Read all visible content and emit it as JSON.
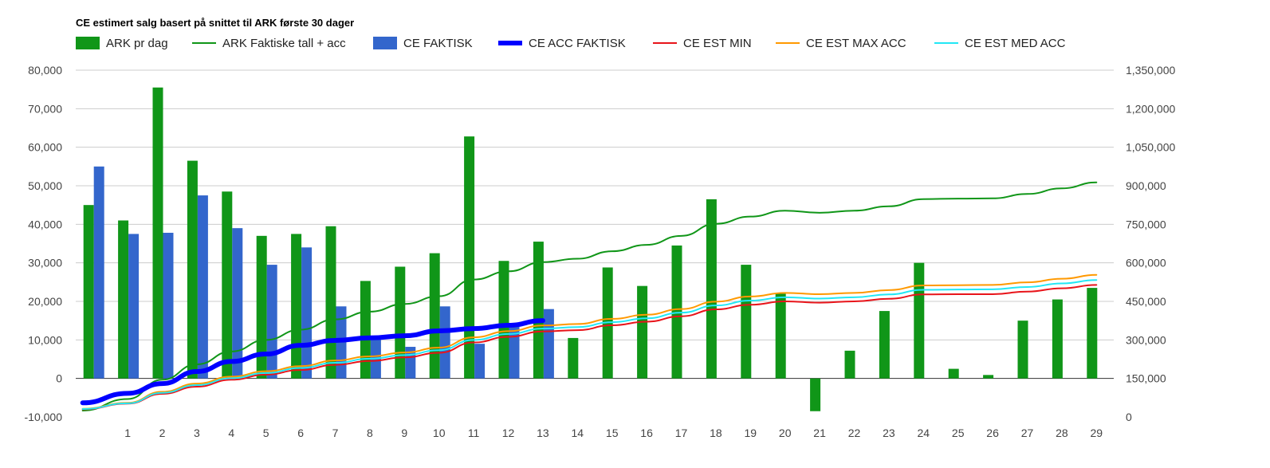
{
  "chart_data": {
    "type": "bar",
    "title": "CE estimert salg basert på snittet til ARK første 30 dager",
    "categories": [
      "",
      "1",
      "2",
      "3",
      "4",
      "5",
      "6",
      "7",
      "8",
      "9",
      "10",
      "11",
      "12",
      "13",
      "14",
      "15",
      "16",
      "17",
      "18",
      "19",
      "20",
      "21",
      "22",
      "23",
      "24",
      "25",
      "26",
      "27",
      "28",
      "29"
    ],
    "left_axis": {
      "min": -10000,
      "max": 80000,
      "ticks": [
        "80,000",
        "70,000",
        "60,000",
        "50,000",
        "40,000",
        "30,000",
        "20,000",
        "10,000",
        "0",
        "-10,000"
      ]
    },
    "right_axis": {
      "min": 0,
      "max": 1350000,
      "ticks": [
        "1,350,000",
        "1,200,000",
        "1,050,000",
        "900,000",
        "750,000",
        "600,000",
        "450,000",
        "300,000",
        "150,000",
        "0"
      ]
    },
    "grid": true,
    "legend_position": "top-left",
    "series": [
      {
        "name": "ARK pr dag",
        "kind": "bar",
        "axis": "left",
        "color": "#109618",
        "values": [
          45000,
          41000,
          75500,
          56500,
          48500,
          37000,
          37500,
          39500,
          25300,
          29000,
          32500,
          62800,
          30500,
          35500,
          10500,
          28800,
          24000,
          34500,
          46500,
          29500,
          22000,
          -8500,
          7200,
          17500,
          30000,
          2500,
          900,
          15000,
          20500,
          23500
        ]
      },
      {
        "name": "CE FAKTISK",
        "kind": "bar",
        "axis": "left",
        "color": "#3366cc",
        "values": [
          55000,
          37500,
          37800,
          47500,
          39000,
          29500,
          34000,
          18700,
          10500,
          8200,
          18700,
          9000,
          13500,
          18000,
          null,
          null,
          null,
          null,
          null,
          null,
          null,
          null,
          null,
          null,
          null,
          null,
          null,
          null,
          null,
          null
        ]
      },
      {
        "name": "ARK Faktiske tall + acc",
        "kind": "line",
        "axis": "right",
        "color": "#109618",
        "width": 2,
        "values": [
          25000,
          70000,
          145000,
          205000,
          255000,
          300000,
          340000,
          380000,
          410000,
          440000,
          470000,
          535000,
          567000,
          603000,
          616000,
          645000,
          670000,
          705000,
          752000,
          780000,
          803000,
          795000,
          803000,
          820000,
          848000,
          850000,
          851000,
          868000,
          890000,
          913000
        ]
      },
      {
        "name": "CE ACC FAKTISK",
        "kind": "line",
        "axis": "right",
        "color": "#0000ff",
        "width": 6,
        "values": [
          55000,
          92000,
          130000,
          177000,
          216000,
          245000,
          279000,
          298000,
          308000,
          316000,
          335000,
          344000,
          357000,
          375000,
          null,
          null,
          null,
          null,
          null,
          null,
          null,
          null,
          null,
          null,
          null,
          null,
          null,
          null,
          null,
          null
        ]
      },
      {
        "name": "CE EST MIN",
        "kind": "line",
        "axis": "right",
        "color": "#e8141a",
        "width": 2,
        "values": [
          30000,
          52000,
          90000,
          118000,
          145000,
          165000,
          183000,
          203000,
          218000,
          232000,
          250000,
          290000,
          312000,
          333000,
          338000,
          357000,
          371000,
          392000,
          419000,
          437000,
          450000,
          445000,
          450000,
          460000,
          477000,
          478000,
          478000,
          488000,
          501000,
          514000
        ]
      },
      {
        "name": "CE EST MAX ACC",
        "kind": "line",
        "axis": "right",
        "color": "#ff9900",
        "width": 2,
        "values": [
          32000,
          55000,
          98000,
          130000,
          157000,
          178000,
          198000,
          220000,
          236000,
          251000,
          270000,
          310000,
          334000,
          356000,
          362000,
          382000,
          398000,
          420000,
          449000,
          469000,
          483000,
          478000,
          483000,
          494000,
          512000,
          513000,
          514000,
          524000,
          538000,
          553000
        ]
      },
      {
        "name": "CE EST MED ACC",
        "kind": "line",
        "axis": "right",
        "color": "#22e7f5",
        "width": 2,
        "values": [
          31000,
          53000,
          94000,
          124000,
          151000,
          171000,
          191000,
          211000,
          227000,
          241000,
          260000,
          300000,
          323000,
          344000,
          350000,
          369000,
          384000,
          406000,
          434000,
          453000,
          466000,
          461000,
          466000,
          477000,
          495000,
          496000,
          497000,
          506000,
          520000,
          533000
        ]
      }
    ]
  },
  "legend": [
    {
      "label": "ARK pr dag",
      "color": "#109618",
      "shape": "box"
    },
    {
      "label": "ARK Faktiske tall + acc",
      "color": "#109618",
      "shape": "line"
    },
    {
      "label": "CE FAKTISK",
      "color": "#3366cc",
      "shape": "box"
    },
    {
      "label": "CE ACC FAKTISK",
      "color": "#0000ff",
      "shape": "thick-line"
    },
    {
      "label": "CE EST MIN",
      "color": "#e8141a",
      "shape": "line"
    },
    {
      "label": "CE EST MAX ACC",
      "color": "#ff9900",
      "shape": "line"
    },
    {
      "label": "CE EST MED ACC",
      "color": "#22e7f5",
      "shape": "line"
    }
  ]
}
